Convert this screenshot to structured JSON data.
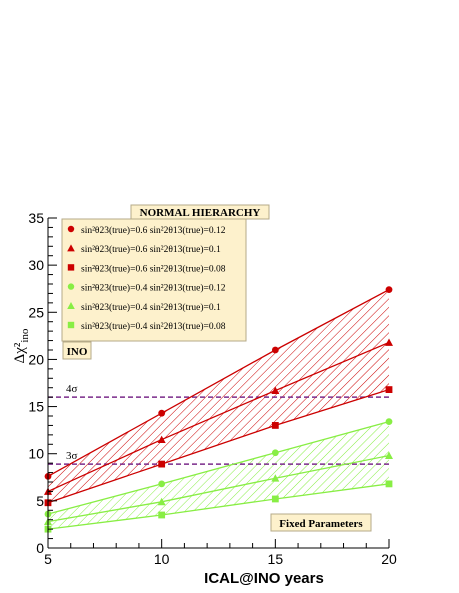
{
  "chart_data": {
    "type": "line",
    "title": "NORMAL HIERARCHY",
    "xlabel": "ICAL@INO years",
    "ylabel": "Δχ²",
    "ylabel_sub": "ino",
    "xlim": [
      5,
      20
    ],
    "ylim": [
      0,
      35
    ],
    "x_ticks": [
      5,
      10,
      15,
      20
    ],
    "y_ticks": [
      0,
      5,
      10,
      15,
      20,
      25,
      30,
      35
    ],
    "x": [
      5,
      10,
      15,
      20
    ],
    "grid": false,
    "legend_position": "top-left",
    "series": [
      {
        "name": "sin²θ23(true)=0.6   sin²2θ13(true)=0.12",
        "marker": "circle",
        "color": "#cc0000",
        "values": [
          7.6,
          14.3,
          21.0,
          27.4
        ]
      },
      {
        "name": "sin²θ23(true)=0.6   sin²2θ13(true)=0.1",
        "marker": "triangle",
        "color": "#cc0000",
        "values": [
          6.0,
          11.5,
          16.7,
          21.8
        ]
      },
      {
        "name": "sin²θ23(true)=0.6   sin²2θ13(true)=0.08",
        "marker": "square",
        "color": "#cc0000",
        "values": [
          4.8,
          8.9,
          13.0,
          16.8
        ]
      },
      {
        "name": "sin²θ23(true)=0.4   sin²2θ13(true)=0.12",
        "marker": "circle",
        "color": "#88ee44",
        "values": [
          3.6,
          6.8,
          10.1,
          13.4
        ]
      },
      {
        "name": "sin²θ23(true)=0.4   sin²2θ13(true)=0.1",
        "marker": "triangle",
        "color": "#88ee44",
        "values": [
          2.8,
          4.9,
          7.4,
          9.8
        ]
      },
      {
        "name": "sin²θ23(true)=0.4   sin²2θ13(true)=0.08",
        "marker": "square",
        "color": "#88ee44",
        "values": [
          2.0,
          3.5,
          5.2,
          6.8
        ]
      }
    ],
    "bands": [
      {
        "color": "#cc0000",
        "upper_series": 0,
        "lower_series": 2
      },
      {
        "color": "#88ee44",
        "upper_series": 3,
        "lower_series": 5
      }
    ],
    "reference_lines": [
      {
        "label": "4σ",
        "y": 16.0,
        "color": "#7a2a8a"
      },
      {
        "label": "3σ",
        "y": 8.9,
        "color": "#7a2a8a"
      }
    ],
    "annotations": {
      "experiment": "INO",
      "note": "Fixed Parameters"
    }
  }
}
